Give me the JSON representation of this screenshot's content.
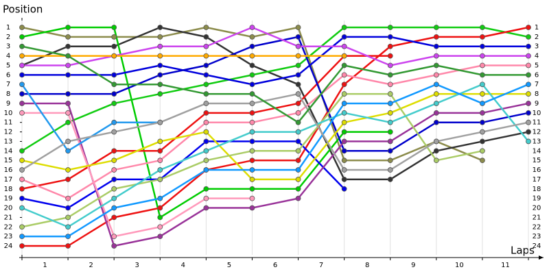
{
  "chart_data": {
    "type": "line",
    "title": "Position",
    "x_label": "Laps",
    "x": [
      0,
      1,
      2,
      3,
      4,
      5,
      6,
      7,
      8,
      9,
      10,
      11
    ],
    "xlim": [
      0,
      11
    ],
    "xticks": [
      {
        "value": 0.5,
        "label": "1"
      },
      {
        "value": 1.5,
        "label": "2"
      },
      {
        "value": 2.5,
        "label": "3"
      },
      {
        "value": 3.5,
        "label": "4"
      },
      {
        "value": 4.5,
        "label": "5"
      },
      {
        "value": 5.5,
        "label": "6"
      },
      {
        "value": 6.5,
        "label": "7"
      },
      {
        "value": 7.5,
        "label": "8"
      },
      {
        "value": 8.5,
        "label": "9"
      },
      {
        "value": 9.5,
        "label": "10"
      },
      {
        "value": 10.5,
        "label": "11"
      }
    ],
    "ylim": [
      25,
      0
    ],
    "yticks": [
      1,
      2,
      3,
      4,
      5,
      6,
      7,
      8,
      9,
      10,
      11,
      12,
      13,
      14,
      15,
      16,
      17,
      18,
      19,
      20,
      21,
      22,
      23,
      24
    ],
    "grid": true,
    "series": [
      {
        "color": "#8c8c4c",
        "values": [
          1,
          2,
          2,
          2,
          1,
          2,
          1,
          15,
          15,
          13,
          15,
          null
        ]
      },
      {
        "color": "#333333",
        "values": [
          5,
          3,
          3,
          1,
          2,
          5,
          7,
          17,
          17,
          14,
          13,
          12
        ]
      },
      {
        "color": "#00cc00",
        "values": [
          2,
          1,
          1,
          21,
          18,
          18,
          18,
          12,
          12,
          null,
          null,
          null
        ]
      },
      {
        "color": "#11cc11",
        "values": [
          14,
          11,
          9,
          8,
          7,
          6,
          5,
          1,
          1,
          1,
          1,
          2
        ]
      },
      {
        "color": "#ee1111",
        "values": [
          24,
          24,
          21,
          20,
          16,
          15,
          15,
          7,
          3,
          2,
          2,
          1
        ]
      },
      {
        "color": "#ee1111",
        "values": [
          18,
          17,
          14,
          14,
          10,
          10,
          9,
          4,
          4,
          null,
          null,
          null
        ]
      },
      {
        "color": "#0000dd",
        "values": [
          6,
          6,
          6,
          5,
          6,
          7,
          6,
          2,
          2,
          3,
          3,
          3
        ]
      },
      {
        "color": "#0000cc",
        "values": [
          8,
          8,
          8,
          6,
          5,
          3,
          2,
          14,
          14,
          11,
          11,
          10
        ]
      },
      {
        "color": "#0000ee",
        "values": [
          19,
          20,
          17,
          17,
          13,
          13,
          13,
          18,
          null,
          null,
          null,
          null
        ]
      },
      {
        "color": "#cc44ee",
        "values": [
          5,
          5,
          4,
          3,
          3,
          1,
          3,
          3,
          5,
          4,
          4,
          4
        ]
      },
      {
        "color": "#ffaa00",
        "values": [
          4,
          4,
          4,
          4,
          4,
          4,
          4,
          4,
          null,
          null,
          null,
          null
        ]
      },
      {
        "color": "#993399",
        "values": [
          9,
          9,
          24,
          23,
          20,
          20,
          19,
          13,
          13,
          10,
          10,
          9
        ]
      },
      {
        "color": "#ff88aa",
        "values": [
          17,
          19,
          16,
          15,
          11,
          11,
          10,
          6,
          7,
          6,
          5,
          5
        ]
      },
      {
        "color": "#ff99bb",
        "values": [
          10,
          10,
          23,
          22,
          19,
          19,
          null,
          null,
          null,
          null,
          null,
          null
        ]
      },
      {
        "color": "#dddd00",
        "values": [
          15,
          16,
          15,
          13,
          12,
          17,
          17,
          11,
          10,
          8,
          8,
          8
        ]
      },
      {
        "color": "#aacc66",
        "values": [
          22,
          21,
          18,
          17,
          15,
          14,
          14,
          8,
          8,
          15,
          14,
          null
        ]
      },
      {
        "color": "#44cccc",
        "values": [
          20,
          22,
          19,
          16,
          14,
          12,
          12,
          10,
          11,
          9,
          7,
          13
        ]
      },
      {
        "color": "#2299ee",
        "values": [
          7,
          14,
          11,
          11,
          null,
          null,
          null,
          null,
          null,
          null,
          null,
          null
        ]
      },
      {
        "color": "#1199ff",
        "values": [
          23,
          23,
          20,
          19,
          16,
          16,
          16,
          9,
          9,
          7,
          9,
          7
        ]
      },
      {
        "color": "#a0a0a0",
        "values": [
          16,
          13,
          12,
          11,
          9,
          9,
          8,
          16,
          16,
          13,
          12,
          11
        ]
      },
      {
        "color": "#339933",
        "values": [
          3,
          4,
          7,
          7,
          8,
          8,
          11,
          5,
          6,
          5,
          6,
          6
        ]
      }
    ]
  }
}
